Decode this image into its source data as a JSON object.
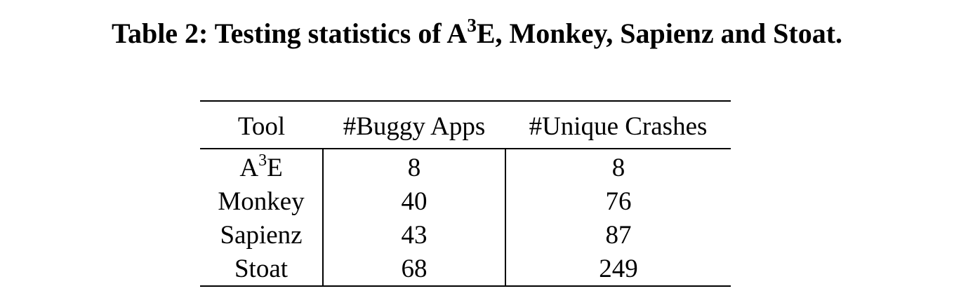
{
  "caption": {
    "label": "Table 2:",
    "text_before": "Testing statistics of A",
    "superscript": "3",
    "text_after": "E, Monkey, Sapienz and Stoat."
  },
  "table": {
    "headers": [
      "Tool",
      "#Buggy Apps",
      "#Unique Crashes"
    ],
    "rows": [
      {
        "tool": "A",
        "tool_sup": "3",
        "tool_suffix": "E",
        "buggy_apps": "8",
        "unique_crashes": "8"
      },
      {
        "tool": "Monkey",
        "tool_sup": "",
        "tool_suffix": "",
        "buggy_apps": "40",
        "unique_crashes": "76"
      },
      {
        "tool": "Sapienz",
        "tool_sup": "",
        "tool_suffix": "",
        "buggy_apps": "43",
        "unique_crashes": "87"
      },
      {
        "tool": "Stoat",
        "tool_sup": "",
        "tool_suffix": "",
        "buggy_apps": "68",
        "unique_crashes": "249"
      }
    ]
  }
}
